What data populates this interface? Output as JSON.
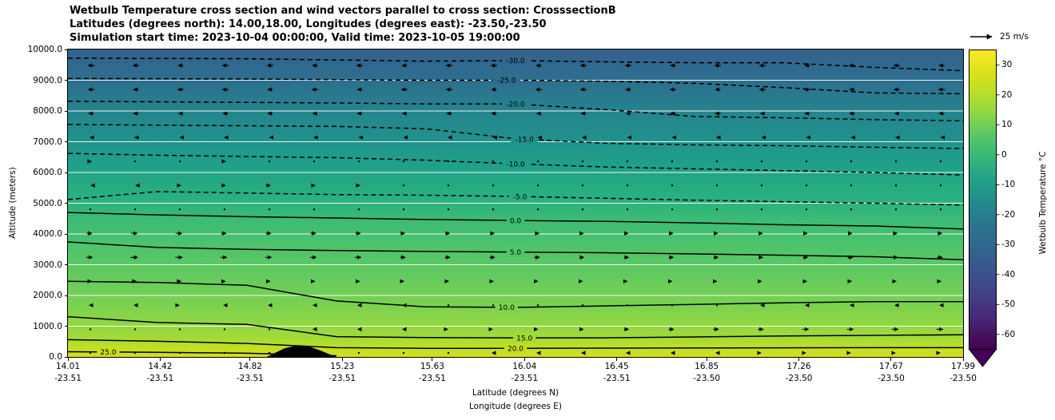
{
  "chart_data": {
    "type": "heatmap",
    "subtype": "filled-contour cross-section with wind quiver",
    "title_lines": [
      "Wetbulb Temperature cross section and wind vectors parallel to cross section: CrosssectionB",
      "Latitudes (degrees north): 14.00,18.00, Longitudes (degrees east): -23.50,-23.50",
      "Simulation start time: 2023-10-04 00:00:00, Valid time: 2023-10-05 19:00:00"
    ],
    "ylabel": "Altitude (meters)",
    "xlabel_line1": "Latitude (degrees N)",
    "xlabel_line2": "Longitude (degrees E)",
    "x_range": [
      14.01,
      17.99
    ],
    "y_range": [
      0,
      10000
    ],
    "x_ticks": [
      {
        "lat": "14.01",
        "lon": "-23.51",
        "v": 14.01
      },
      {
        "lat": "14.42",
        "lon": "-23.51",
        "v": 14.42
      },
      {
        "lat": "14.82",
        "lon": "-23.51",
        "v": 14.82
      },
      {
        "lat": "15.23",
        "lon": "-23.51",
        "v": 15.23
      },
      {
        "lat": "15.63",
        "lon": "-23.51",
        "v": 15.63
      },
      {
        "lat": "16.04",
        "lon": "-23.51",
        "v": 16.04
      },
      {
        "lat": "16.45",
        "lon": "-23.51",
        "v": 16.45
      },
      {
        "lat": "16.85",
        "lon": "-23.50",
        "v": 16.85
      },
      {
        "lat": "17.26",
        "lon": "-23.50",
        "v": 17.26
      },
      {
        "lat": "17.67",
        "lon": "-23.50",
        "v": 17.67
      },
      {
        "lat": "17.99",
        "lon": "-23.50",
        "v": 17.99
      }
    ],
    "y_ticks": [
      {
        "label": "0.0",
        "alt": 0
      },
      {
        "label": "1000.0",
        "alt": 1000
      },
      {
        "label": "2000.0",
        "alt": 2000
      },
      {
        "label": "3000.0",
        "alt": 3000
      },
      {
        "label": "4000.0",
        "alt": 4000
      },
      {
        "label": "5000.0",
        "alt": 5000
      },
      {
        "label": "6000.0",
        "alt": 6000
      },
      {
        "label": "7000.0",
        "alt": 7000
      },
      {
        "label": "8000.0",
        "alt": 8000
      },
      {
        "label": "9000.0",
        "alt": 9000
      },
      {
        "label": "10000.0",
        "alt": 10000
      }
    ],
    "gridlines_alt": [
      1000,
      2000,
      3000,
      4000,
      5000,
      6000,
      7000,
      8000,
      9000
    ],
    "contours": [
      {
        "level": "-30.0",
        "dashed": true,
        "label_frac": 0.5,
        "alts": [
          9720,
          9710,
          9700,
          9660,
          9620,
          9640,
          9600,
          9570,
          9570,
          9420,
          9310
        ]
      },
      {
        "level": "-25.0",
        "dashed": true,
        "label_frac": 0.49,
        "alts": [
          9060,
          9050,
          9040,
          9020,
          9000,
          9000,
          8970,
          8900,
          8760,
          8590,
          8560
        ]
      },
      {
        "level": "-20.0",
        "dashed": true,
        "label_frac": 0.5,
        "alts": [
          8320,
          8300,
          8280,
          8260,
          8230,
          8230,
          8050,
          7820,
          7780,
          7720,
          7680
        ]
      },
      {
        "level": "-15.0",
        "dashed": true,
        "label_frac": 0.51,
        "alts": [
          7560,
          7540,
          7520,
          7500,
          7420,
          7100,
          6950,
          6900,
          6870,
          6820,
          6780
        ]
      },
      {
        "level": "-10.0",
        "dashed": true,
        "label_frac": 0.5,
        "alts": [
          6620,
          6560,
          6520,
          6480,
          6400,
          6280,
          6180,
          6120,
          6060,
          6000,
          5920
        ]
      },
      {
        "level": "-5.0",
        "dashed": true,
        "label_frac": 0.505,
        "alts": [
          5120,
          5380,
          5330,
          5280,
          5260,
          5220,
          5160,
          5100,
          5050,
          5000,
          4940
        ]
      },
      {
        "level": "0.0",
        "dashed": false,
        "label_frac": 0.5,
        "alts": [
          4700,
          4620,
          4560,
          4520,
          4470,
          4440,
          4410,
          4360,
          4300,
          4260,
          4160
        ]
      },
      {
        "level": "5.0",
        "dashed": false,
        "label_frac": 0.5,
        "alts": [
          3740,
          3560,
          3500,
          3460,
          3430,
          3410,
          3390,
          3350,
          3310,
          3260,
          3160
        ]
      },
      {
        "level": "10.0",
        "dashed": false,
        "label_frac": 0.49,
        "alts": [
          2460,
          2420,
          2330,
          1820,
          1630,
          1610,
          1660,
          1710,
          1760,
          1800,
          1800
        ]
      },
      {
        "level": "15.0",
        "dashed": false,
        "label_frac": 0.51,
        "alts": [
          1310,
          1120,
          1060,
          660,
          630,
          620,
          620,
          650,
          680,
          700,
          720
        ]
      },
      {
        "level": "20.0",
        "dashed": false,
        "label_frac": 0.5,
        "alts": [
          560,
          510,
          440,
          300,
          280,
          280,
          285,
          290,
          295,
          300,
          300
        ]
      },
      {
        "level": "25.0",
        "dashed": false,
        "label_frac": 0.045,
        "x_end": 0.3,
        "alts": [
          170,
          150,
          120,
          40,
          0,
          0,
          0,
          0,
          0,
          0,
          0
        ]
      }
    ],
    "terrain": [
      [
        0.222,
        0
      ],
      [
        0.232,
        140
      ],
      [
        0.242,
        280
      ],
      [
        0.255,
        370
      ],
      [
        0.268,
        350
      ],
      [
        0.28,
        230
      ],
      [
        0.292,
        90
      ],
      [
        0.3,
        0
      ]
    ],
    "fill_gradient": [
      {
        "alt": 10000,
        "color": "#34608d"
      },
      {
        "alt": 9550,
        "color": "#31688e"
      },
      {
        "alt": 8900,
        "color": "#2d708e"
      },
      {
        "alt": 8100,
        "color": "#26828e"
      },
      {
        "alt": 7100,
        "color": "#21918c"
      },
      {
        "alt": 6200,
        "color": "#1fa188"
      },
      {
        "alt": 5150,
        "color": "#2ab07f"
      },
      {
        "alt": 4400,
        "color": "#3dbc74"
      },
      {
        "alt": 3400,
        "color": "#52c569"
      },
      {
        "alt": 1700,
        "color": "#7ad151"
      },
      {
        "alt": 650,
        "color": "#a0da39"
      },
      {
        "alt": 300,
        "color": "#c2df23"
      },
      {
        "alt": 0,
        "color": "#d0e11c"
      }
    ],
    "quiver": {
      "reference_speed_ms": 25,
      "legend_label": "25 m/s",
      "rows": [
        {
          "alt": 9480,
          "u": [
            -9,
            -9,
            -8,
            -9,
            -9,
            -8,
            -9,
            -8,
            -9,
            -9,
            -8,
            -9,
            -9,
            -8,
            -9,
            -9,
            -8,
            -9,
            -9,
            -8
          ]
        },
        {
          "alt": 8700,
          "u": [
            -9,
            -8,
            -9,
            -9,
            -8,
            -9,
            -8,
            -9,
            -9,
            -8,
            -9,
            -9,
            -8,
            -9,
            -8,
            -9,
            -9,
            -8,
            -9,
            -9
          ]
        },
        {
          "alt": 7920,
          "u": [
            -8,
            -8,
            -7,
            -8,
            -8,
            -7,
            -8,
            -7,
            -8,
            -8,
            -7,
            -8,
            -7,
            -8,
            -8,
            -7,
            -8,
            -8,
            -7,
            -8
          ]
        },
        {
          "alt": 7140,
          "u": [
            -5,
            -5,
            -4,
            -5,
            -4,
            -5,
            -4,
            -4,
            -5,
            -4,
            -4,
            -5,
            -4,
            -4,
            -5,
            -4,
            -4,
            -4,
            -5,
            -4
          ]
        },
        {
          "alt": 6360,
          "u": [
            -2,
            -1,
            -1,
            -2,
            -1,
            -1,
            -1,
            -1,
            -1,
            -1,
            -1,
            -1,
            -1,
            -1,
            -1,
            -1,
            -1,
            -1,
            -1,
            -1
          ]
        },
        {
          "alt": 5580,
          "u": [
            -3,
            -3,
            -2,
            -2,
            -2,
            -2,
            -2,
            -1,
            -1,
            -1,
            -1,
            -1,
            -1,
            -1,
            -1,
            -1,
            -1,
            -1,
            -1,
            -1
          ]
        },
        {
          "alt": 4800,
          "u": [
            1,
            1,
            1,
            1,
            1,
            1,
            1,
            1,
            1,
            1,
            1,
            1,
            1,
            1,
            1,
            1,
            1,
            1,
            1,
            1
          ]
        },
        {
          "alt": 4020,
          "u": [
            8,
            9,
            9,
            8,
            8,
            8,
            8,
            7,
            7,
            7,
            7,
            6,
            6,
            6,
            6,
            6,
            6,
            6,
            7,
            7
          ]
        },
        {
          "alt": 3240,
          "u": [
            9,
            10,
            10,
            9,
            9,
            9,
            9,
            8,
            8,
            8,
            8,
            7,
            7,
            7,
            7,
            7,
            7,
            8,
            8,
            8
          ]
        },
        {
          "alt": 2460,
          "u": [
            7,
            7,
            7,
            6,
            6,
            6,
            6,
            5,
            5,
            5,
            4,
            4,
            4,
            4,
            4,
            4,
            5,
            5,
            5,
            5
          ]
        },
        {
          "alt": 1680,
          "u": [
            2,
            2,
            3,
            2,
            2,
            2,
            2,
            2,
            1,
            1,
            1,
            1,
            1,
            1,
            1,
            2,
            2,
            2,
            2,
            2
          ]
        },
        {
          "alt": 900,
          "u": [
            1,
            1,
            1,
            1,
            1,
            2,
            2,
            2,
            3,
            3,
            4,
            6,
            7,
            8,
            8,
            8,
            9,
            9,
            9,
            9
          ]
        },
        {
          "alt": 130,
          "u": [
            1,
            1,
            1,
            1,
            1,
            1,
            1,
            1,
            1,
            2,
            2,
            2,
            2,
            2,
            2,
            3,
            3,
            3,
            3,
            3
          ]
        }
      ]
    },
    "colorbar": {
      "label": "Wetbulb Temperature °C",
      "vmin": -65,
      "vmax": 35,
      "extend_min": true,
      "extend_color": "#440154",
      "ticks": [
        {
          "label": "30",
          "v": 30
        },
        {
          "label": "20",
          "v": 20
        },
        {
          "label": "10",
          "v": 10
        },
        {
          "label": "0",
          "v": 0
        },
        {
          "label": "-10",
          "v": -10
        },
        {
          "label": "-20",
          "v": -20
        },
        {
          "label": "-30",
          "v": -30
        },
        {
          "label": "-40",
          "v": -40
        },
        {
          "label": "-50",
          "v": -50
        },
        {
          "label": "-60",
          "v": -60
        }
      ],
      "stops": [
        {
          "v": 35,
          "color": "#fde725"
        },
        {
          "v": 27,
          "color": "#d8e219"
        },
        {
          "v": 20,
          "color": "#b5de2b"
        },
        {
          "v": 13,
          "color": "#89d548"
        },
        {
          "v": 6,
          "color": "#56c667"
        },
        {
          "v": 0,
          "color": "#38b977"
        },
        {
          "v": -7,
          "color": "#25a584"
        },
        {
          "v": -14,
          "color": "#21918c"
        },
        {
          "v": -22,
          "color": "#2a788e"
        },
        {
          "v": -30,
          "color": "#31688e"
        },
        {
          "v": -38,
          "color": "#39558c"
        },
        {
          "v": -46,
          "color": "#414287"
        },
        {
          "v": -54,
          "color": "#472a7a"
        },
        {
          "v": -60,
          "color": "#45125e"
        },
        {
          "v": -65,
          "color": "#440154"
        }
      ]
    }
  }
}
